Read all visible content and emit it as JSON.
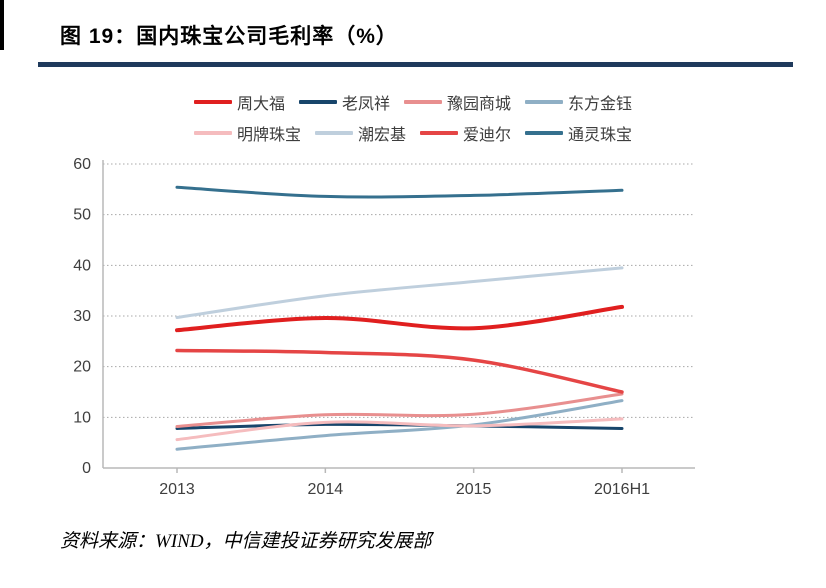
{
  "page": {
    "title": "图  19：国内珠宝公司毛利率（%）",
    "source": "资料来源：WIND，中信建投证券研究发展部",
    "accent_rule_color": "#1f3a5c"
  },
  "chart_data": {
    "type": "line",
    "title": "国内珠宝公司毛利率（%）",
    "categories": [
      "2013",
      "2014",
      "2015",
      "2016H1"
    ],
    "series": [
      {
        "name": "周大福",
        "color": "#e01f1f",
        "width": 4,
        "values": [
          27.2,
          29.6,
          27.6,
          31.8
        ]
      },
      {
        "name": "老凤祥",
        "color": "#17456b",
        "width": 3,
        "values": [
          7.8,
          8.6,
          8.3,
          7.8
        ]
      },
      {
        "name": "豫园商城",
        "color": "#e88f8f",
        "width": 3,
        "values": [
          8.2,
          10.5,
          10.6,
          14.6
        ]
      },
      {
        "name": "东方金钰",
        "color": "#8fafc5",
        "width": 3,
        "values": [
          3.7,
          6.4,
          8.5,
          13.3
        ]
      },
      {
        "name": "明牌珠宝",
        "color": "#f5bcbe",
        "width": 3,
        "values": [
          5.6,
          9.0,
          8.3,
          9.7
        ]
      },
      {
        "name": "潮宏基",
        "color": "#bfcfdd",
        "width": 3,
        "values": [
          29.7,
          34.0,
          36.8,
          39.5
        ]
      },
      {
        "name": "爱迪尔",
        "color": "#e54545",
        "width": 3.5,
        "values": [
          23.2,
          22.8,
          21.3,
          15.0
        ]
      },
      {
        "name": "通灵珠宝",
        "color": "#35708e",
        "width": 3,
        "values": [
          55.4,
          53.6,
          53.8,
          54.8
        ]
      }
    ],
    "xlabel": "",
    "ylabel": "",
    "ylim": [
      0,
      60
    ],
    "ytick_step": 10,
    "grid": "horizontal-dotted",
    "grid_color": "#a8a8a8",
    "axis_color": "#b8b8b8",
    "tick_label_color": "#3f3f3f",
    "legend_position": "top"
  }
}
